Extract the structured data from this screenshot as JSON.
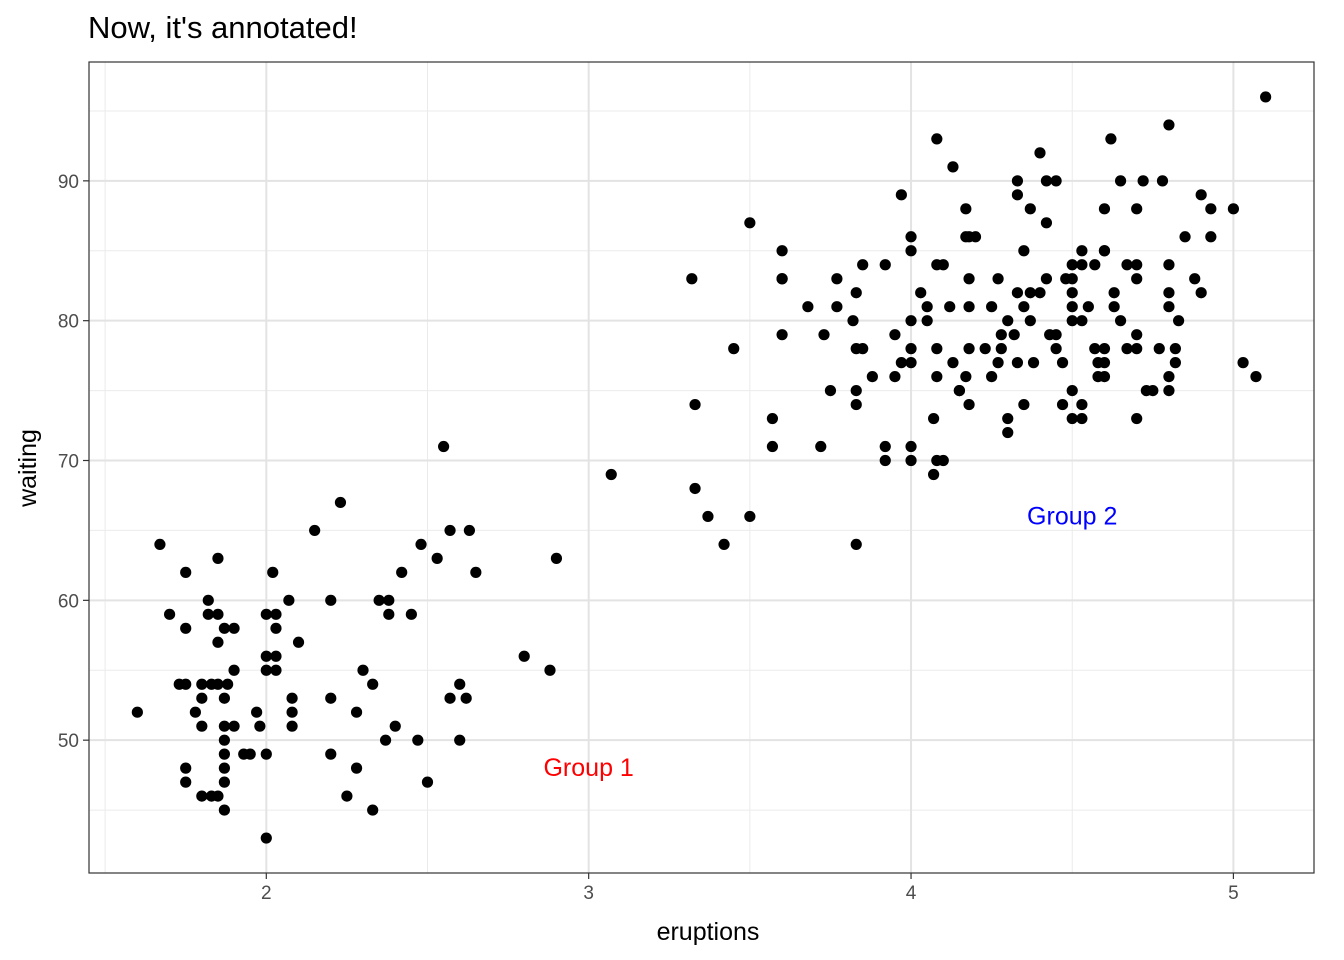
{
  "chart_data": {
    "type": "scatter",
    "title": "Now, it's annotated!",
    "xlabel": "eruptions",
    "ylabel": "waiting",
    "xlim": [
      1.45,
      5.25
    ],
    "ylim": [
      40.5,
      98.5
    ],
    "x_ticks": [
      2,
      3,
      4,
      5
    ],
    "x_tick_labels": [
      "2",
      "3",
      "4",
      "5"
    ],
    "y_ticks": [
      50,
      60,
      70,
      80,
      90
    ],
    "y_tick_labels": [
      "50",
      "60",
      "70",
      "80",
      "90"
    ],
    "grid": true,
    "point_color": "#000000",
    "annotations": [
      {
        "text": "Group 1",
        "x": 3.0,
        "y": 48,
        "color": "#ff0000"
      },
      {
        "text": "Group 2",
        "x": 4.5,
        "y": 66,
        "color": "#0000ff"
      }
    ],
    "points": [
      [
        1.6,
        52
      ],
      [
        1.67,
        64
      ],
      [
        1.7,
        59
      ],
      [
        1.73,
        54
      ],
      [
        1.75,
        54
      ],
      [
        1.75,
        62
      ],
      [
        1.75,
        58
      ],
      [
        1.75,
        48
      ],
      [
        1.75,
        47
      ],
      [
        1.78,
        52
      ],
      [
        1.8,
        46
      ],
      [
        1.8,
        53
      ],
      [
        1.8,
        51
      ],
      [
        1.8,
        54
      ],
      [
        1.82,
        60
      ],
      [
        1.82,
        59
      ],
      [
        1.83,
        46
      ],
      [
        1.83,
        54
      ],
      [
        1.85,
        63
      ],
      [
        1.85,
        57
      ],
      [
        1.85,
        59
      ],
      [
        1.85,
        46
      ],
      [
        1.85,
        54
      ],
      [
        1.87,
        58
      ],
      [
        1.87,
        53
      ],
      [
        1.87,
        51
      ],
      [
        1.87,
        50
      ],
      [
        1.87,
        49
      ],
      [
        1.87,
        48
      ],
      [
        1.87,
        47
      ],
      [
        1.87,
        45
      ],
      [
        1.88,
        54
      ],
      [
        1.9,
        55
      ],
      [
        1.9,
        58
      ],
      [
        1.9,
        51
      ],
      [
        1.93,
        49
      ],
      [
        1.95,
        49
      ],
      [
        1.97,
        52
      ],
      [
        1.98,
        51
      ],
      [
        2.0,
        56
      ],
      [
        2.0,
        55
      ],
      [
        2.0,
        59
      ],
      [
        2.0,
        49
      ],
      [
        2.0,
        43
      ],
      [
        2.02,
        62
      ],
      [
        2.03,
        56
      ],
      [
        2.03,
        59
      ],
      [
        2.03,
        58
      ],
      [
        2.03,
        55
      ],
      [
        2.07,
        60
      ],
      [
        2.08,
        52
      ],
      [
        2.08,
        51
      ],
      [
        2.08,
        53
      ],
      [
        2.1,
        57
      ],
      [
        2.15,
        65
      ],
      [
        2.2,
        60
      ],
      [
        2.2,
        53
      ],
      [
        2.2,
        49
      ],
      [
        2.23,
        67
      ],
      [
        2.25,
        46
      ],
      [
        2.28,
        48
      ],
      [
        2.28,
        52
      ],
      [
        2.3,
        55
      ],
      [
        2.33,
        54
      ],
      [
        2.33,
        45
      ],
      [
        2.35,
        60
      ],
      [
        2.37,
        50
      ],
      [
        2.38,
        59
      ],
      [
        2.38,
        60
      ],
      [
        2.4,
        51
      ],
      [
        2.42,
        62
      ],
      [
        2.45,
        59
      ],
      [
        2.47,
        50
      ],
      [
        2.48,
        64
      ],
      [
        2.5,
        47
      ],
      [
        2.53,
        63
      ],
      [
        2.55,
        71
      ],
      [
        2.57,
        53
      ],
      [
        2.57,
        65
      ],
      [
        2.6,
        54
      ],
      [
        2.6,
        50
      ],
      [
        2.65,
        62
      ],
      [
        2.62,
        53
      ],
      [
        2.63,
        65
      ],
      [
        2.8,
        56
      ],
      [
        2.88,
        55
      ],
      [
        2.9,
        63
      ],
      [
        3.07,
        69
      ],
      [
        3.32,
        83
      ],
      [
        3.33,
        74
      ],
      [
        3.33,
        68
      ],
      [
        3.37,
        66
      ],
      [
        3.42,
        64
      ],
      [
        3.45,
        78
      ],
      [
        3.5,
        87
      ],
      [
        3.5,
        66
      ],
      [
        3.57,
        73
      ],
      [
        3.57,
        71
      ],
      [
        3.6,
        85
      ],
      [
        3.6,
        83
      ],
      [
        3.6,
        83
      ],
      [
        3.6,
        79
      ],
      [
        3.68,
        81
      ],
      [
        3.72,
        71
      ],
      [
        3.73,
        79
      ],
      [
        3.75,
        75
      ],
      [
        3.77,
        83
      ],
      [
        3.77,
        81
      ],
      [
        3.82,
        80
      ],
      [
        3.83,
        82
      ],
      [
        3.83,
        78
      ],
      [
        3.83,
        75
      ],
      [
        3.83,
        74
      ],
      [
        3.83,
        64
      ],
      [
        3.85,
        84
      ],
      [
        3.85,
        78
      ],
      [
        3.88,
        76
      ],
      [
        3.92,
        84
      ],
      [
        3.92,
        71
      ],
      [
        3.92,
        70
      ],
      [
        3.95,
        76
      ],
      [
        3.95,
        79
      ],
      [
        3.97,
        89
      ],
      [
        3.97,
        77
      ],
      [
        4.0,
        86
      ],
      [
        4.0,
        85
      ],
      [
        4.0,
        80
      ],
      [
        4.0,
        78
      ],
      [
        4.0,
        77
      ],
      [
        4.0,
        71
      ],
      [
        4.0,
        70
      ],
      [
        4.03,
        82
      ],
      [
        4.05,
        81
      ],
      [
        4.05,
        80
      ],
      [
        4.07,
        73
      ],
      [
        4.07,
        69
      ],
      [
        4.08,
        93
      ],
      [
        4.08,
        84
      ],
      [
        4.08,
        78
      ],
      [
        4.08,
        76
      ],
      [
        4.08,
        70
      ],
      [
        4.1,
        84
      ],
      [
        4.1,
        70
      ],
      [
        4.12,
        81
      ],
      [
        4.13,
        77
      ],
      [
        4.13,
        91
      ],
      [
        4.15,
        75
      ],
      [
        4.15,
        75
      ],
      [
        4.17,
        86
      ],
      [
        4.17,
        88
      ],
      [
        4.17,
        76
      ],
      [
        4.18,
        74
      ],
      [
        4.18,
        86
      ],
      [
        4.18,
        83
      ],
      [
        4.18,
        81
      ],
      [
        4.18,
        78
      ],
      [
        4.2,
        86
      ],
      [
        4.23,
        78
      ],
      [
        4.25,
        81
      ],
      [
        4.25,
        76
      ],
      [
        4.27,
        77
      ],
      [
        4.27,
        83
      ],
      [
        4.28,
        78
      ],
      [
        4.28,
        79
      ],
      [
        4.3,
        80
      ],
      [
        4.3,
        73
      ],
      [
        4.3,
        72
      ],
      [
        4.32,
        79
      ],
      [
        4.33,
        90
      ],
      [
        4.33,
        89
      ],
      [
        4.33,
        82
      ],
      [
        4.33,
        77
      ],
      [
        4.35,
        85
      ],
      [
        4.35,
        81
      ],
      [
        4.35,
        74
      ],
      [
        4.37,
        88
      ],
      [
        4.37,
        82
      ],
      [
        4.37,
        80
      ],
      [
        4.38,
        77
      ],
      [
        4.4,
        92
      ],
      [
        4.4,
        82
      ],
      [
        4.42,
        90
      ],
      [
        4.42,
        87
      ],
      [
        4.42,
        83
      ],
      [
        4.43,
        79
      ],
      [
        4.45,
        90
      ],
      [
        4.45,
        79
      ],
      [
        4.45,
        78
      ],
      [
        4.47,
        77
      ],
      [
        4.47,
        74
      ],
      [
        4.48,
        83
      ],
      [
        4.5,
        84
      ],
      [
        4.5,
        83
      ],
      [
        4.5,
        82
      ],
      [
        4.5,
        81
      ],
      [
        4.5,
        80
      ],
      [
        4.5,
        75
      ],
      [
        4.5,
        73
      ],
      [
        4.53,
        85
      ],
      [
        4.53,
        84
      ],
      [
        4.53,
        80
      ],
      [
        4.53,
        74
      ],
      [
        4.53,
        73
      ],
      [
        4.55,
        81
      ],
      [
        4.57,
        84
      ],
      [
        4.57,
        78
      ],
      [
        4.58,
        77
      ],
      [
        4.58,
        76
      ],
      [
        4.6,
        85
      ],
      [
        4.6,
        85
      ],
      [
        4.6,
        88
      ],
      [
        4.6,
        78
      ],
      [
        4.6,
        77
      ],
      [
        4.6,
        76
      ],
      [
        4.62,
        93
      ],
      [
        4.63,
        82
      ],
      [
        4.63,
        81
      ],
      [
        4.65,
        90
      ],
      [
        4.65,
        80
      ],
      [
        4.67,
        84
      ],
      [
        4.67,
        78
      ],
      [
        4.7,
        88
      ],
      [
        4.7,
        84
      ],
      [
        4.7,
        83
      ],
      [
        4.7,
        79
      ],
      [
        4.7,
        78
      ],
      [
        4.7,
        73
      ],
      [
        4.72,
        90
      ],
      [
        4.73,
        75
      ],
      [
        4.75,
        75
      ],
      [
        4.77,
        78
      ],
      [
        4.78,
        90
      ],
      [
        4.8,
        94
      ],
      [
        4.8,
        84
      ],
      [
        4.8,
        82
      ],
      [
        4.8,
        81
      ],
      [
        4.8,
        76
      ],
      [
        4.8,
        75
      ],
      [
        4.82,
        78
      ],
      [
        4.82,
        77
      ],
      [
        4.83,
        80
      ],
      [
        4.85,
        86
      ],
      [
        4.88,
        83
      ],
      [
        4.9,
        89
      ],
      [
        4.9,
        82
      ],
      [
        4.93,
        88
      ],
      [
        4.93,
        86
      ],
      [
        5.0,
        88
      ],
      [
        5.03,
        77
      ],
      [
        5.07,
        76
      ],
      [
        5.1,
        96
      ]
    ]
  }
}
